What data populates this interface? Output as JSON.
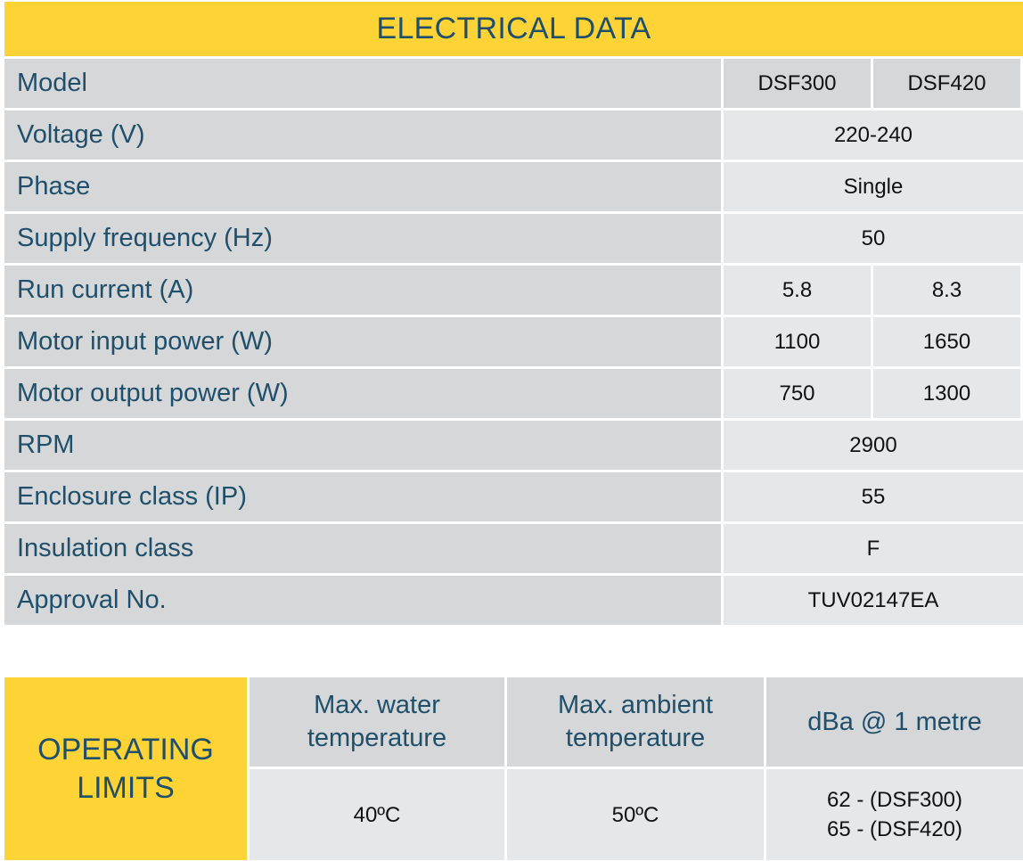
{
  "electrical": {
    "title": "ELECTRICAL DATA",
    "rows": [
      {
        "label": "Model",
        "values": [
          "DSF300",
          "DSF420"
        ]
      },
      {
        "label": "Voltage (V)",
        "values": [
          "220-240"
        ]
      },
      {
        "label": "Phase",
        "values": [
          "Single"
        ]
      },
      {
        "label": "Supply frequency (Hz)",
        "values": [
          "50"
        ]
      },
      {
        "label": "Run current (A)",
        "values": [
          "5.8",
          "8.3"
        ]
      },
      {
        "label": "Motor input power (W)",
        "values": [
          "1100",
          "1650"
        ]
      },
      {
        "label": "Motor output power (W)",
        "values": [
          "750",
          "1300"
        ]
      },
      {
        "label": "RPM",
        "values": [
          "2900"
        ]
      },
      {
        "label": "Enclosure class (IP)",
        "values": [
          "55"
        ]
      },
      {
        "label": "Insulation class",
        "values": [
          "F"
        ]
      },
      {
        "label": "Approval No.",
        "values": [
          "TUV02147EA"
        ]
      }
    ]
  },
  "operating": {
    "title_line1": "OPERATING",
    "title_line2": "LIMITS",
    "columns": [
      {
        "head_line1": "Max. water",
        "head_line2": "temperature",
        "value_line1": "40ºC",
        "value_line2": ""
      },
      {
        "head_line1": "Max. ambient",
        "head_line2": "temperature",
        "value_line1": "50ºC",
        "value_line2": ""
      },
      {
        "head_line1": "dBa @ 1 metre",
        "head_line2": "",
        "value_line1": "62 - (DSF300)",
        "value_line2": "65 - (DSF420)"
      }
    ]
  },
  "colors": {
    "accent_yellow": "#fdd335",
    "label_blue": "#1f4f6b",
    "label_bg": "#d5d7d9",
    "value_bg": "#e6e7e8"
  }
}
